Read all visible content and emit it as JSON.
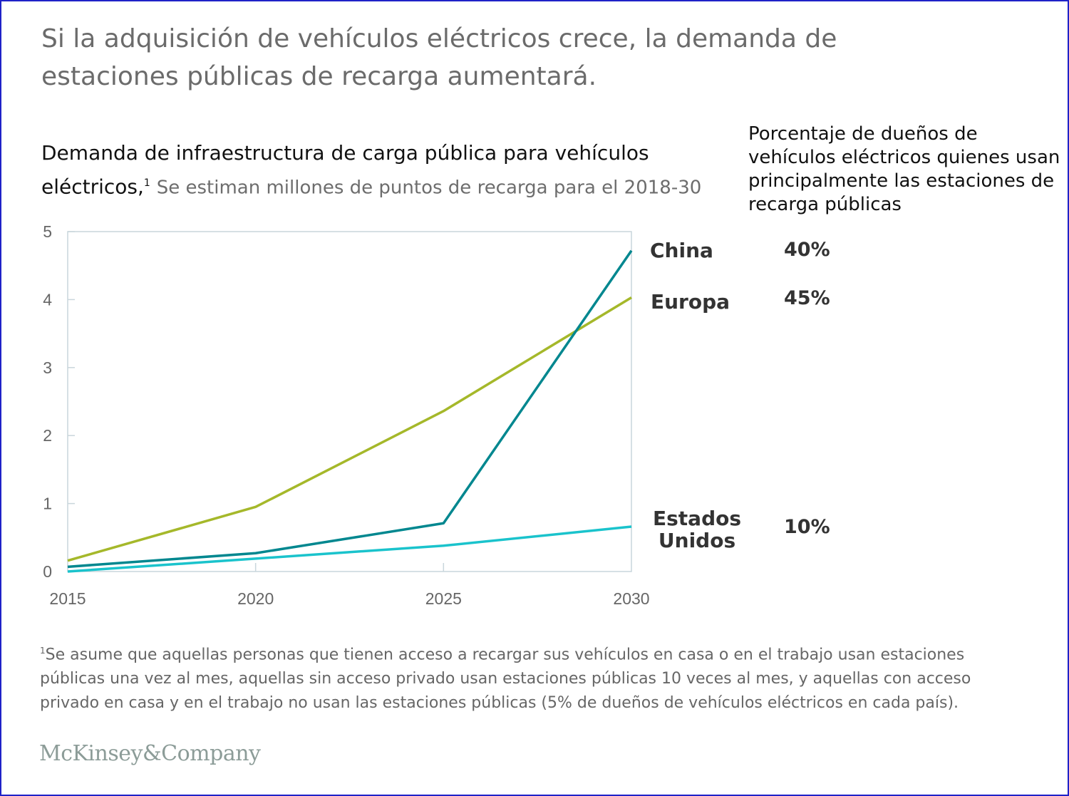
{
  "title": "Si la adquisición de vehículos eléctricos crece,  la demanda de estaciones públicas de recarga aumentará.",
  "right_header": "Porcentaje de dueños de vehículos eléctricos quienes usan principalmente las estaciones de recarga públicas",
  "footnote": {
    "marker": "1",
    "text": "Se asume que aquellas personas que tienen acceso a recargar sus vehículos en casa o en el trabajo usan estaciones públicas una vez al mes, aquellas sin acceso privado usan estaciones públicas 10 veces al mes, y aquellas con acceso privado en casa y en el trabajo no usan las estaciones públicas (5% de dueños de vehículos eléctricos en cada país)."
  },
  "logo": "McKinsey&Company",
  "chart_data": {
    "type": "line",
    "title": "Demanda de infraestructura de carga pública para vehículos eléctricos,",
    "title_marker": "1",
    "subtitle": "Se estiman millones de puntos de recarga para el 2018-30",
    "x": [
      2015,
      2020,
      2025,
      2030
    ],
    "xticks": [
      "2015",
      "2020",
      "2025",
      "2030"
    ],
    "yticks": [
      "0",
      "1",
      "2",
      "3",
      "4",
      "5"
    ],
    "xlim": [
      2015,
      2030
    ],
    "ylim": [
      0,
      5
    ],
    "grid": false,
    "series": [
      {
        "name": "China",
        "color": "#00878f",
        "values": [
          0.07,
          0.27,
          0.71,
          4.72
        ],
        "share": "40%"
      },
      {
        "name": "Europa",
        "color": "#a5b82a",
        "values": [
          0.16,
          0.95,
          2.36,
          4.03
        ],
        "share": "45%"
      },
      {
        "name": "Estados Unidos",
        "name_lines": [
          "Estados",
          "Unidos"
        ],
        "color": "#1ac3cc",
        "values": [
          0.0,
          0.19,
          0.38,
          0.66
        ],
        "share": "10%"
      }
    ]
  }
}
